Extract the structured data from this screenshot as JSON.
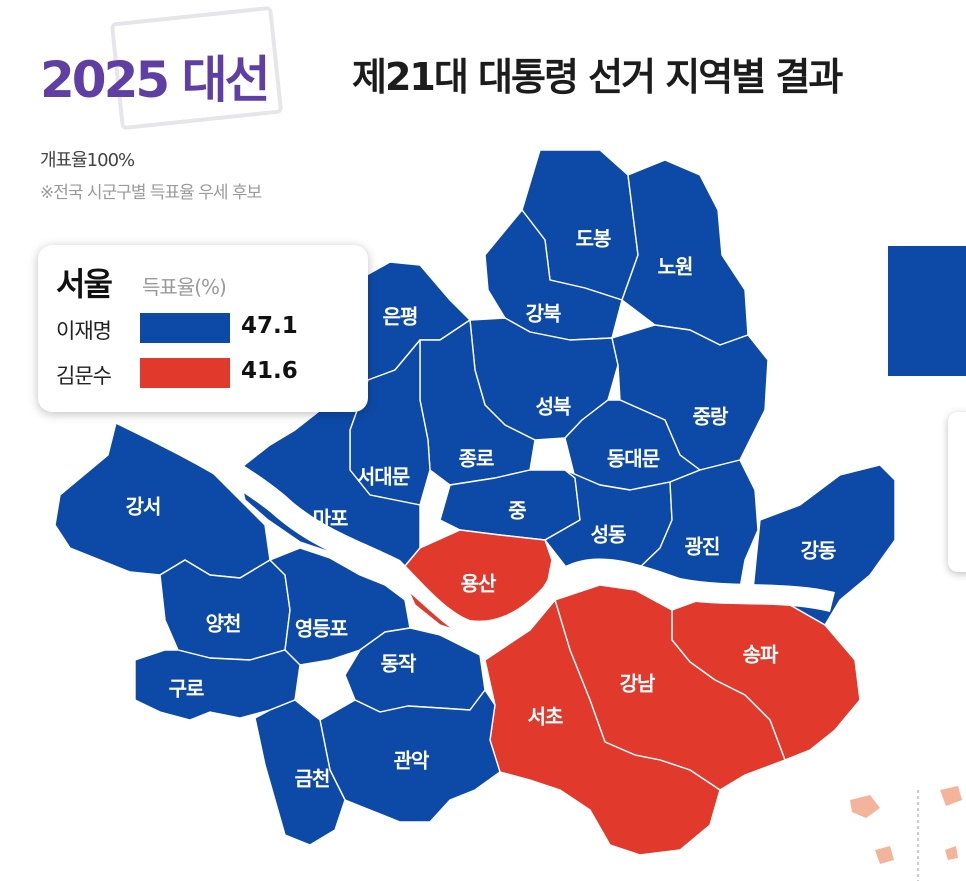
{
  "header": {
    "brand": "2025 대선",
    "title": "제21대 대통령 선거 지역별 결과"
  },
  "notes": {
    "count_rate": "개표율100%",
    "footnote": "※전국 시군구별 득표율 우세 후보"
  },
  "legend": {
    "region": "서울",
    "unit": "득표율(%)",
    "candidates": [
      {
        "name": "이재명",
        "value": "47.1",
        "color": "#0d4aa8"
      },
      {
        "name": "김문수",
        "value": "41.6",
        "color": "#e1392c"
      }
    ]
  },
  "colors": {
    "blue": "#0d4aa8",
    "red": "#e1392c",
    "river": "#ffffff"
  },
  "districts": [
    {
      "name": "도봉",
      "winner": "blue"
    },
    {
      "name": "노원",
      "winner": "blue"
    },
    {
      "name": "강북",
      "winner": "blue"
    },
    {
      "name": "은평",
      "winner": "blue"
    },
    {
      "name": "성북",
      "winner": "blue"
    },
    {
      "name": "중랑",
      "winner": "blue"
    },
    {
      "name": "종로",
      "winner": "blue"
    },
    {
      "name": "서대문",
      "winner": "blue"
    },
    {
      "name": "동대문",
      "winner": "blue"
    },
    {
      "name": "마포",
      "winner": "blue"
    },
    {
      "name": "중",
      "winner": "blue"
    },
    {
      "name": "성동",
      "winner": "blue"
    },
    {
      "name": "광진",
      "winner": "blue"
    },
    {
      "name": "강동",
      "winner": "blue"
    },
    {
      "name": "강서",
      "winner": "blue"
    },
    {
      "name": "용산",
      "winner": "red"
    },
    {
      "name": "양천",
      "winner": "blue"
    },
    {
      "name": "영등포",
      "winner": "blue"
    },
    {
      "name": "송파",
      "winner": "red"
    },
    {
      "name": "동작",
      "winner": "blue"
    },
    {
      "name": "구로",
      "winner": "blue"
    },
    {
      "name": "강남",
      "winner": "red"
    },
    {
      "name": "서초",
      "winner": "red"
    },
    {
      "name": "관악",
      "winner": "blue"
    },
    {
      "name": "금천",
      "winner": "blue"
    }
  ]
}
